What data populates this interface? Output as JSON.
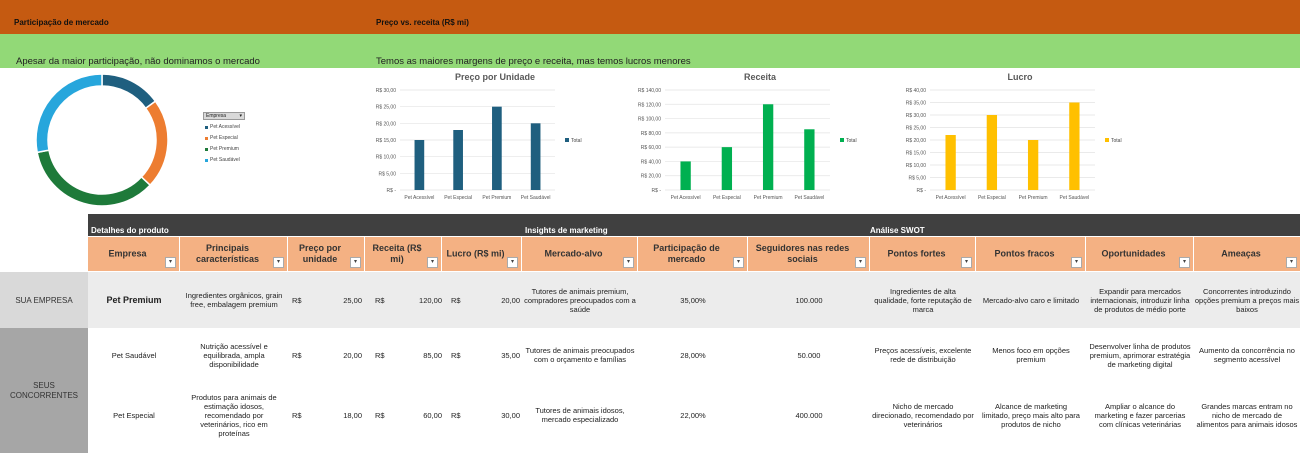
{
  "header": {
    "left_title": "Participação de mercado",
    "right_title": "Preço vs. receita (R$ mi)",
    "left_subtitle": "Apesar da maior participação, não dominamos o mercado",
    "right_subtitle": "Temos as maiores margens de preço e receita, mas temos lucros menores"
  },
  "colors": {
    "acessivel": "#1f5f7f",
    "especial": "#ed7d31",
    "premium": "#1e7a3a",
    "saudavel": "#27a6dc",
    "price_bar": "#1f5f7f",
    "revenue_bar": "#00b050",
    "profit_bar": "#ffc000"
  },
  "donut": {
    "filter_label": "Empresa",
    "legend": [
      "Pet Acessível",
      "Pet Especial",
      "Pet Premium",
      "Pet Saudável"
    ]
  },
  "chart_data": [
    {
      "type": "pie",
      "title": "Participação de mercado",
      "categories": [
        "Pet Acessível",
        "Pet Especial",
        "Pet Premium",
        "Pet Saudável"
      ],
      "values": [
        15,
        22,
        35,
        28
      ]
    },
    {
      "type": "bar",
      "title": "Preço por Unidade",
      "categories": [
        "Pet Acessível",
        "Pet Especial",
        "Pet Premium",
        "Pet Saudável"
      ],
      "values": [
        15,
        18,
        25,
        20
      ],
      "ylim": [
        0,
        30
      ],
      "ticks": [
        "R$ 30,00",
        "R$ 25,00",
        "R$ 20,00",
        "R$ 15,00",
        "R$ 10,00",
        "R$ 5,00",
        "R$ -"
      ],
      "legend": "Total"
    },
    {
      "type": "bar",
      "title": "Receita",
      "categories": [
        "Pet Acessível",
        "Pet Especial",
        "Pet Premium",
        "Pet Saudável"
      ],
      "values": [
        40,
        60,
        120,
        85
      ],
      "ylim": [
        0,
        140
      ],
      "ticks": [
        "R$ 140,00",
        "R$ 120,00",
        "R$ 100,00",
        "R$ 80,00",
        "R$ 60,00",
        "R$ 40,00",
        "R$ 20,00",
        "R$ -"
      ],
      "legend": "Total"
    },
    {
      "type": "bar",
      "title": "Lucro",
      "categories": [
        "Pet Acessível",
        "Pet Especial",
        "Pet Premium",
        "Pet Saudável"
      ],
      "values": [
        22,
        30,
        20,
        35
      ],
      "ylim": [
        0,
        40
      ],
      "ticks": [
        "R$ 40,00",
        "R$ 35,00",
        "R$ 30,00",
        "R$ 25,00",
        "R$ 20,00",
        "R$ 15,00",
        "R$ 10,00",
        "R$ 5,00",
        "R$ -"
      ],
      "legend": "Total"
    }
  ],
  "table": {
    "section_product": "Detalhes do produto",
    "section_marketing": "Insights de marketing",
    "section_swot": "Análise SWOT",
    "columns": [
      "Empresa",
      "Principais características",
      "Preço por unidade",
      "Receita (R$ mi)",
      "Lucro (R$ mi)",
      "Mercado-alvo",
      "Participação de mercado",
      "Seguidores nas redes sociais",
      "Pontos fortes",
      "Pontos fracos",
      "Oportunidades",
      "Ameaças"
    ],
    "currency": "R$",
    "group_own": "SUA EMPRESA",
    "group_competitors": "SEUS CONCORRENTES",
    "rows": [
      {
        "empresa": "Pet Premium",
        "caracteristicas": "Ingredientes orgânicos, grain free, embalagem premium",
        "preco": "25,00",
        "receita": "120,00",
        "lucro": "20,00",
        "mercado": "Tutores de animais premium, compradores preocupados com a saúde",
        "participacao": "35,00%",
        "seguidores": "100.000",
        "fortes": "Ingredientes de alta qualidade, forte reputação de marca",
        "fracos": "Mercado-alvo caro e limitado",
        "oportunidades": "Expandir para mercados internacionais, introduzir linha de produtos de médio porte",
        "ameacas": "Concorrentes introduzindo opções premium a preços mais baixos"
      },
      {
        "empresa": "Pet Saudável",
        "caracteristicas": "Nutrição acessível e equilibrada, ampla disponibilidade",
        "preco": "20,00",
        "receita": "85,00",
        "lucro": "35,00",
        "mercado": "Tutores de animais preocupados com o orçamento e famílias",
        "participacao": "28,00%",
        "seguidores": "50.000",
        "fortes": "Preços acessíveis, excelente rede de distribuição",
        "fracos": "Menos foco em opções premium",
        "oportunidades": "Desenvolver linha de produtos premium, aprimorar estratégia de marketing digital",
        "ameacas": "Aumento da concorrência no segmento acessível"
      },
      {
        "empresa": "Pet Especial",
        "caracteristicas": "Produtos para animais de estimação idosos, recomendado por veterinários, rico em proteínas",
        "preco": "18,00",
        "receita": "60,00",
        "lucro": "30,00",
        "mercado": "Tutores de animais idosos, mercado especializado",
        "participacao": "22,00%",
        "seguidores": "400.000",
        "fortes": "Nicho de mercado direcionado, recomendado por veterinários",
        "fracos": "Alcance de marketing limitado, preço mais alto para produtos de nicho",
        "oportunidades": "Ampliar o alcance do marketing e fazer parcerias com clínicas veterinárias",
        "ameacas": "Grandes marcas entram no nicho de mercado de alimentos para animais idosos"
      }
    ]
  }
}
